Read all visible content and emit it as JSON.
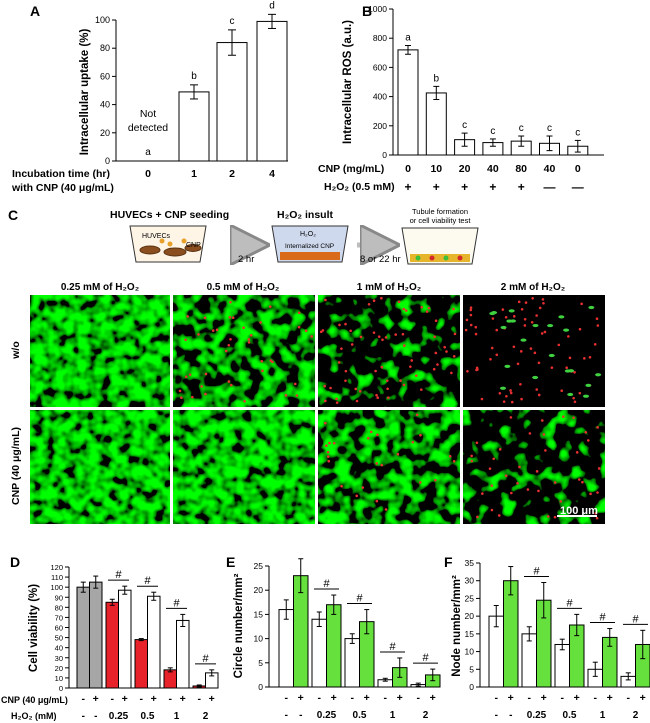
{
  "panels": {
    "A": "A",
    "B": "B",
    "C": "C",
    "D": "D",
    "E": "E",
    "F": "F"
  },
  "chart_data": [
    {
      "id": "A",
      "type": "bar",
      "ylabel": "Intracellular uptake (%)",
      "ylim": [
        0,
        100
      ],
      "yticks": [
        "0",
        "20",
        "40",
        "60",
        "80",
        "100"
      ],
      "xrow_labels": [
        "Incubation time (hr)",
        "with CNP (40 μg/mL)"
      ],
      "categories": [
        "0",
        "1",
        "2",
        "4"
      ],
      "values": [
        0,
        49,
        84,
        99
      ],
      "errors": [
        0,
        5,
        9,
        5
      ],
      "letters": [
        "a",
        "b",
        "c",
        "d"
      ],
      "annotation": [
        "Not",
        "detected"
      ]
    },
    {
      "id": "B",
      "type": "bar",
      "ylabel": "Intracellular ROS (a.u.)",
      "ylim": [
        0,
        1000
      ],
      "yticks": [
        "0",
        "200",
        "400",
        "600",
        "800",
        "1000"
      ],
      "xrow_labels": [
        "CNP (mg/mL)",
        "H₂O₂ (0.5 mM)"
      ],
      "categories": [
        "0",
        "10",
        "20",
        "40",
        "80",
        "40",
        "0"
      ],
      "h2o2": [
        "+",
        "+",
        "+",
        "+",
        "+",
        "—",
        "—"
      ],
      "values": [
        720,
        425,
        105,
        85,
        95,
        80,
        60
      ],
      "errors": [
        30,
        45,
        45,
        25,
        35,
        50,
        40
      ],
      "letters": [
        "a",
        "b",
        "c",
        "c",
        "c",
        "c",
        "c"
      ]
    },
    {
      "id": "D",
      "type": "bar",
      "ylabel": "Cell viability (%)",
      "ylim": [
        0,
        120
      ],
      "yticks": [
        "0",
        "10",
        "20",
        "30",
        "40",
        "50",
        "60",
        "70",
        "80",
        "90",
        "100",
        "110",
        "120"
      ],
      "row1_label": "CNP (40 μg/mL)",
      "row2_label": "H₂O₂ (mM)",
      "cnp_signs": [
        "-",
        "+",
        "-",
        "+",
        "-",
        "+",
        "-",
        "+",
        "-",
        "+"
      ],
      "h2o2_labels": [
        "-",
        "-",
        "0.25",
        "0.5",
        "1",
        "2"
      ],
      "values": [
        100,
        105,
        85,
        97,
        48,
        91,
        18,
        67,
        2,
        15
      ],
      "errors": [
        5,
        6,
        3,
        4,
        1,
        4,
        2,
        6,
        1,
        3
      ],
      "colors": [
        "#a6a6a6",
        "#a6a6a6",
        "#e8222a",
        "#ffffff",
        "#e8222a",
        "#ffffff",
        "#e8222a",
        "#ffffff",
        "#e8222a",
        "#ffffff"
      ],
      "sig": "#"
    },
    {
      "id": "E",
      "type": "bar",
      "ylabel": "Circle number/mm²",
      "ylim": [
        0,
        25
      ],
      "yticks": [
        "0",
        "5",
        "10",
        "15",
        "20",
        "25"
      ],
      "cnp_signs": [
        "-",
        "+",
        "-",
        "+",
        "-",
        "+",
        "-",
        "+",
        "-",
        "+"
      ],
      "h2o2_labels": [
        "-",
        "-",
        "0.25",
        "0.5",
        "1",
        "2"
      ],
      "values": [
        16,
        23,
        14,
        17,
        10,
        13.5,
        1.5,
        4,
        0.5,
        2.5
      ],
      "errors": [
        2,
        3.5,
        1.5,
        2,
        1,
        2.5,
        0.3,
        2,
        0.3,
        1.2
      ],
      "colors": [
        "#ffffff",
        "#66e03c",
        "#ffffff",
        "#66e03c",
        "#ffffff",
        "#66e03c",
        "#ffffff",
        "#66e03c",
        "#ffffff",
        "#66e03c"
      ],
      "sig": "#"
    },
    {
      "id": "F",
      "type": "bar",
      "ylabel": "Node number/mm²",
      "ylim": [
        0,
        35
      ],
      "yticks": [
        "0",
        "5",
        "10",
        "15",
        "20",
        "25",
        "30",
        "35"
      ],
      "cnp_signs": [
        "-",
        "+",
        "-",
        "+",
        "-",
        "+",
        "-",
        "+",
        "-",
        "+"
      ],
      "h2o2_labels": [
        "-",
        "-",
        "0.25",
        "0.5",
        "1",
        "2"
      ],
      "values": [
        20,
        30,
        15,
        24.5,
        12,
        17.5,
        5,
        14,
        3,
        12
      ],
      "errors": [
        3,
        4,
        2,
        5,
        1.5,
        3,
        2,
        2.5,
        1,
        4
      ],
      "colors": [
        "#ffffff",
        "#66e03c",
        "#ffffff",
        "#66e03c",
        "#ffffff",
        "#66e03c",
        "#ffffff",
        "#66e03c",
        "#ffffff",
        "#66e03c"
      ],
      "sig": "#"
    }
  ],
  "schematic": {
    "step1_title": "HUVECs + CNP seeding",
    "step1_labels": [
      "HUVECs",
      "CNP"
    ],
    "arrow1": "2 hr",
    "step2_title": "H₂O₂ insult",
    "step2_labels": [
      "H₂O₂",
      "Internalized CNP"
    ],
    "arrow2": "8 or 22 hr",
    "step3_title": [
      "Tubule formation",
      "or cell viability test"
    ]
  },
  "micrographs": {
    "columns": [
      "0.25 mM of H₂O₂",
      "0.5 mM of H₂O₂",
      "1 mM of H₂O₂",
      "2 mM of H₂O₂"
    ],
    "rows": [
      "w/o",
      "CNP (40 μg/mL)"
    ],
    "scale_bar": "100 μm"
  }
}
